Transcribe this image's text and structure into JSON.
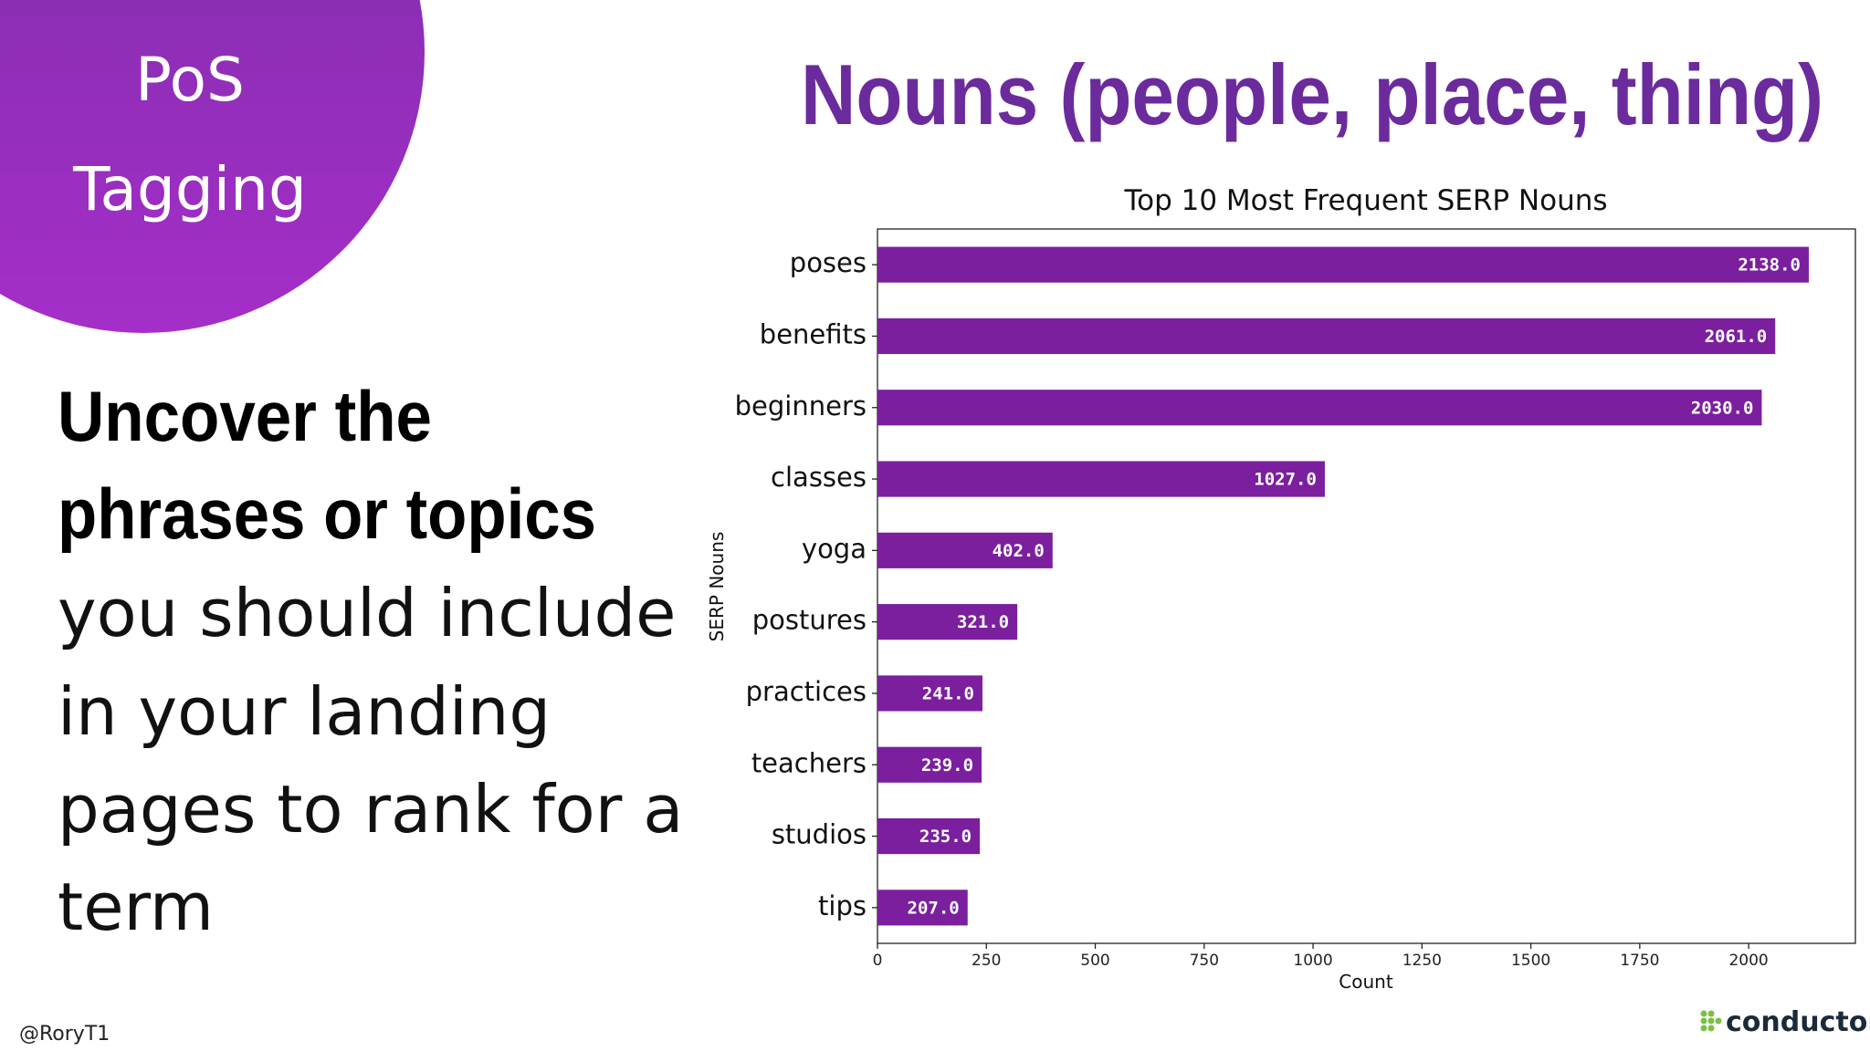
{
  "slide": {
    "badge": [
      "PoS",
      "Tagging"
    ],
    "heading": "Nouns (people, place, thing)",
    "bold_lines": [
      "Uncover the",
      "phrases or topics"
    ],
    "lines": [
      "you should include",
      "in your landing",
      "pages to rank for a",
      "term"
    ],
    "handle": "@RoryT1",
    "logo": "conductor"
  },
  "chart_data": {
    "type": "barh",
    "title": "Top 10 Most Frequent SERP Nouns",
    "x_label": "Count",
    "y_label": "SERP Nouns",
    "categories": [
      "poses",
      "benefits",
      "beginners",
      "classes",
      "yoga",
      "postures",
      "practices",
      "teachers",
      "studios",
      "tips"
    ],
    "values": [
      2138,
      2061,
      2030,
      1027,
      402,
      321,
      241,
      239,
      235,
      207
    ],
    "value_labels": [
      "2138.0",
      "2061.0",
      "2030.0",
      "1027.0",
      "402.0",
      "321.0",
      "241.0",
      "239.0",
      "235.0",
      "207.0"
    ],
    "color": "#7b1f9e",
    "xlim": [
      0,
      2245
    ],
    "xticks": [
      0,
      250,
      500,
      750,
      1000,
      1250,
      1500,
      1750,
      2000
    ]
  }
}
